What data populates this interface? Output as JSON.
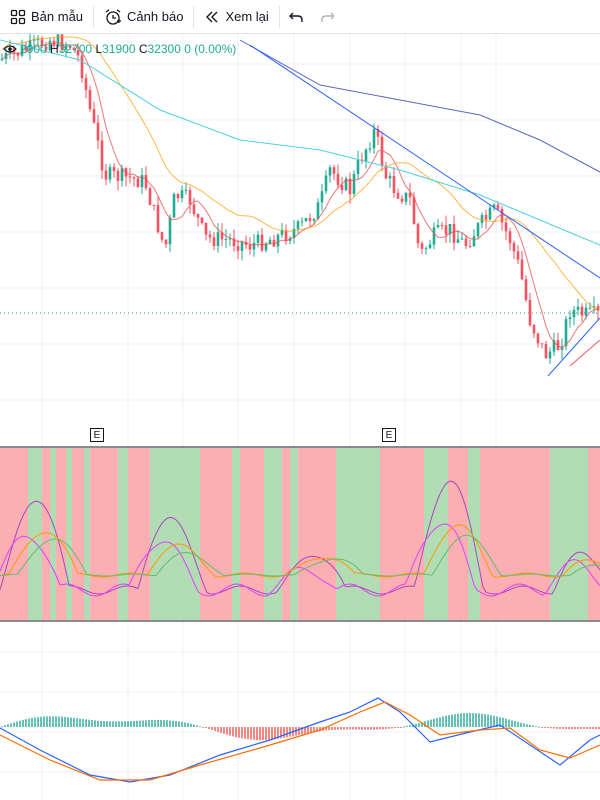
{
  "toolbar": {
    "template_label": "Bản mẫu",
    "alert_label": "Cảnh báo",
    "replay_label": "Xem lại",
    "undo_icon": "undo-icon",
    "redo_icon": "redo-icon"
  },
  "legend": {
    "open": "2000",
    "high_prefix": "H",
    "high": "32700",
    "low_prefix": "L",
    "low": "31900",
    "close_prefix": "C",
    "close": "32300",
    "change": "0 (0.00%)"
  },
  "earnings_markers": [
    "E",
    "E"
  ],
  "colors": {
    "up": "#22ab94",
    "down": "#f7525f",
    "panel_green": "#a5d6a7",
    "panel_red": "#faa1a4",
    "macd_blue": "#2962ff",
    "macd_orange": "#ff6d00"
  }
}
